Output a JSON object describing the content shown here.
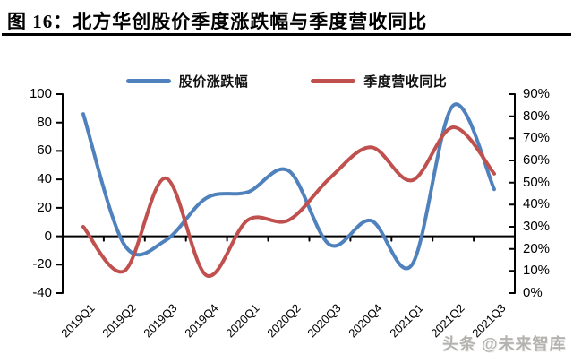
{
  "figure": {
    "title": "图 16：北方华创股价季度涨跌幅与季度营收同比"
  },
  "legend": {
    "items": [
      {
        "label": "股价涨跌幅"
      },
      {
        "label": "季度营收同比"
      }
    ]
  },
  "watermark": {
    "text": "头条 @未来智库"
  },
  "chart_data": {
    "type": "line",
    "title": "北方华创股价季度涨跌幅与季度营收同比",
    "smoothed": true,
    "grid": false,
    "legend_position": "top",
    "categories": [
      "2019Q1",
      "2019Q2",
      "2019Q3",
      "2019Q4",
      "2020Q1",
      "2020Q2",
      "2020Q3",
      "2020Q4",
      "2021Q1",
      "2021Q2",
      "2021Q3"
    ],
    "series": [
      {
        "name": "股价涨跌幅",
        "axis": "left",
        "color": "#4f81bd",
        "values": [
          86,
          -6,
          -3,
          27,
          31,
          46,
          -6,
          11,
          -20,
          92,
          33
        ]
      },
      {
        "name": "季度营收同比",
        "axis": "right",
        "color": "#c0504d",
        "values": [
          30,
          10,
          52,
          8,
          33,
          33,
          52,
          66,
          51,
          75,
          54
        ]
      }
    ],
    "left_axis": {
      "min": -40,
      "max": 100,
      "tick_step": 20,
      "ticks": [
        "100",
        "80",
        "60",
        "40",
        "20",
        "0",
        "-20",
        "-40"
      ]
    },
    "right_axis": {
      "min": 0,
      "max": 90,
      "tick_step": 10,
      "ticks": [
        "90%",
        "80%",
        "70%",
        "60%",
        "50%",
        "40%",
        "30%",
        "20%",
        "10%",
        "0%"
      ]
    }
  }
}
